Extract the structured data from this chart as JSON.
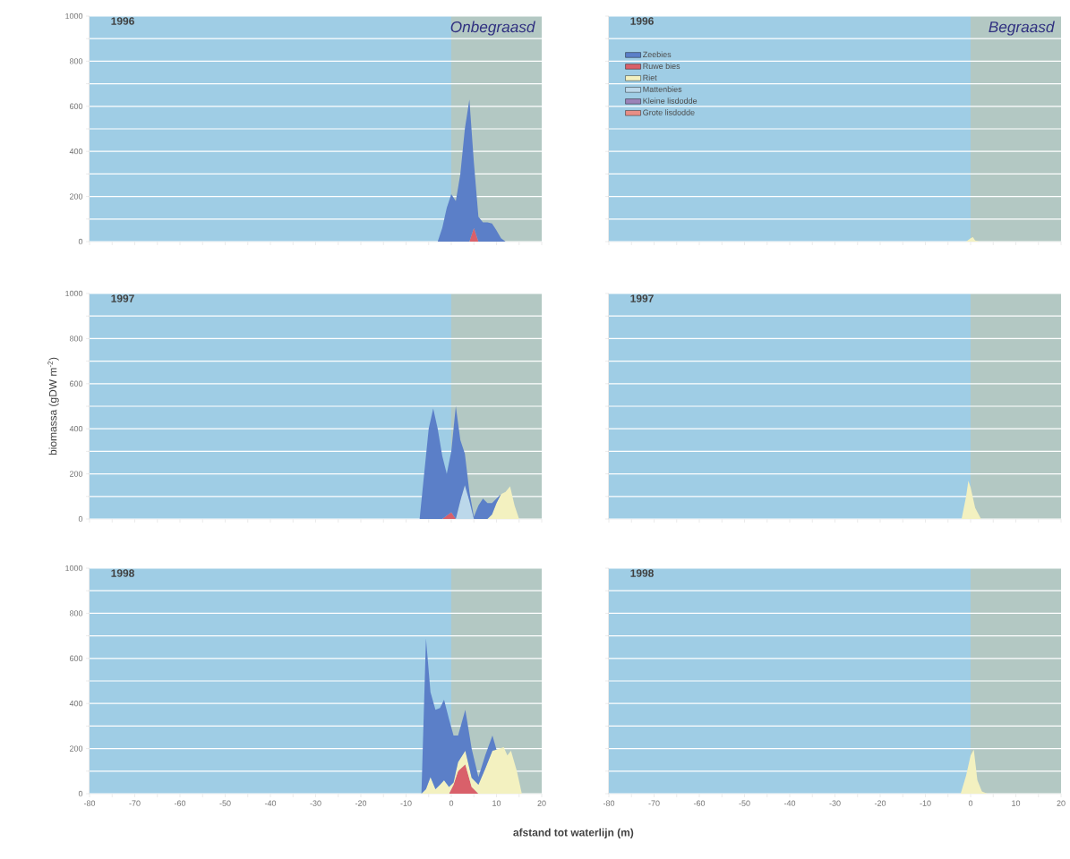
{
  "chart_data": [
    {
      "type": "area",
      "title": "1996",
      "annotations": [
        "Onbegraasd"
      ],
      "stacked": true,
      "grid": "y",
      "tick_labels": "y",
      "xlim": [
        -80,
        20
      ],
      "ylim": [
        0,
        1000
      ],
      "xticks": [
        {
          "value": -80,
          "label": null
        },
        {
          "value": -75,
          "label": null
        },
        {
          "value": -70,
          "label": null
        },
        {
          "value": -65,
          "label": null
        },
        {
          "value": -60,
          "label": null
        },
        {
          "value": -55,
          "label": null
        },
        {
          "value": -50,
          "label": null
        },
        {
          "value": -45,
          "label": null
        },
        {
          "value": -40,
          "label": null
        },
        {
          "value": -35,
          "label": null
        },
        {
          "value": -30,
          "label": null
        },
        {
          "value": -25,
          "label": null
        },
        {
          "value": -20,
          "label": null
        },
        {
          "value": -15,
          "label": null
        },
        {
          "value": -10,
          "label": null
        },
        {
          "value": -5,
          "label": null
        },
        {
          "value": 0,
          "label": null
        },
        {
          "value": 5,
          "label": null
        },
        {
          "value": 10,
          "label": null
        },
        {
          "value": 15,
          "label": null
        },
        {
          "value": 20,
          "label": null
        }
      ],
      "yticks": [
        0,
        {
          "value": 100,
          "label": null
        },
        200,
        {
          "value": 300,
          "label": null
        },
        400,
        {
          "value": 500,
          "label": null
        },
        600,
        {
          "value": 700,
          "label": null
        },
        800,
        {
          "value": 900,
          "label": null
        },
        1000
      ],
      "bands": [
        {
          "axis": "x",
          "from": -80,
          "to": 0,
          "color": "#9fcde5"
        },
        {
          "axis": "x",
          "from": 0,
          "to": 20,
          "color": "#b3c8c3"
        }
      ],
      "x": [
        -3,
        -2,
        -1,
        0,
        1,
        2,
        3,
        4,
        5,
        6,
        7,
        8,
        9,
        10,
        11,
        12
      ],
      "series": [
        {
          "color": "#d9606a",
          "values": [
            0,
            0,
            0,
            0,
            0,
            0,
            0,
            0,
            60,
            0,
            0,
            0,
            0,
            0,
            0,
            0
          ]
        },
        {
          "color": "#5b7fc8",
          "values": [
            0,
            60,
            150,
            210,
            180,
            300,
            500,
            630,
            290,
            110,
            85,
            85,
            80,
            50,
            15,
            0
          ]
        }
      ]
    },
    {
      "type": "area",
      "title": "1996",
      "annotations": [
        "Begraasd"
      ],
      "stacked": true,
      "grid": "y",
      "tick_labels": false,
      "legend": "top left",
      "xlim": [
        -80,
        20
      ],
      "ylim": [
        0,
        1000
      ],
      "xticks": [
        {
          "value": -80,
          "label": null
        },
        {
          "value": -75,
          "label": null
        },
        {
          "value": -70,
          "label": null
        },
        {
          "value": -65,
          "label": null
        },
        {
          "value": -60,
          "label": null
        },
        {
          "value": -55,
          "label": null
        },
        {
          "value": -50,
          "label": null
        },
        {
          "value": -45,
          "label": null
        },
        {
          "value": -40,
          "label": null
        },
        {
          "value": -35,
          "label": null
        },
        {
          "value": -30,
          "label": null
        },
        {
          "value": -25,
          "label": null
        },
        {
          "value": -20,
          "label": null
        },
        {
          "value": -15,
          "label": null
        },
        {
          "value": -10,
          "label": null
        },
        {
          "value": -5,
          "label": null
        },
        {
          "value": 0,
          "label": null
        },
        {
          "value": 5,
          "label": null
        },
        {
          "value": 10,
          "label": null
        },
        {
          "value": 15,
          "label": null
        },
        {
          "value": 20,
          "label": null
        }
      ],
      "yticks": [
        {
          "value": 0,
          "label": null
        },
        {
          "value": 100,
          "label": null
        },
        {
          "value": 200,
          "label": null
        },
        {
          "value": 300,
          "label": null
        },
        {
          "value": 400,
          "label": null
        },
        {
          "value": 500,
          "label": null
        },
        {
          "value": 600,
          "label": null
        },
        {
          "value": 700,
          "label": null
        },
        {
          "value": 800,
          "label": null
        },
        {
          "value": 900,
          "label": null
        },
        {
          "value": 1000,
          "label": null
        }
      ],
      "bands": [
        {
          "axis": "x",
          "from": -80,
          "to": 0,
          "color": "#9fcde5"
        },
        {
          "axis": "x",
          "from": 0,
          "to": 20,
          "color": "#b3c8c3"
        }
      ],
      "x": [
        -1,
        0,
        0.5,
        1,
        2
      ],
      "series": [
        {
          "name": "Zeebies",
          "color": "#5b7fc8",
          "values": [
            null,
            null,
            null,
            null,
            null
          ]
        },
        {
          "name": "Ruwe bies",
          "color": "#d9606a",
          "values": [
            null,
            null,
            null,
            null,
            null
          ]
        },
        {
          "name": "Riet",
          "color": "#f3f1c0",
          "values": [
            0,
            15,
            20,
            5,
            0
          ]
        },
        {
          "name": "Mattenbies",
          "color": "#bcd8ea",
          "values": [
            null,
            null,
            null,
            null,
            null
          ]
        },
        {
          "name": "Kleine lisdodde",
          "color": "#9b83b8",
          "values": [
            null,
            null,
            null,
            null,
            null
          ]
        },
        {
          "name": "Grote lisdodde",
          "color": "#e88e86",
          "values": [
            null,
            null,
            null,
            null,
            null
          ]
        }
      ]
    },
    {
      "type": "area",
      "title": "1997",
      "ylabel": "biomassa (gDW m$^{-2}$)",
      "stacked": true,
      "grid": "y",
      "tick_labels": "y",
      "xlim": [
        -80,
        20
      ],
      "ylim": [
        0,
        1000
      ],
      "xticks": [
        {
          "value": -80,
          "label": null
        },
        {
          "value": -75,
          "label": null
        },
        {
          "value": -70,
          "label": null
        },
        {
          "value": -65,
          "label": null
        },
        {
          "value": -60,
          "label": null
        },
        {
          "value": -55,
          "label": null
        },
        {
          "value": -50,
          "label": null
        },
        {
          "value": -45,
          "label": null
        },
        {
          "value": -40,
          "label": null
        },
        {
          "value": -35,
          "label": null
        },
        {
          "value": -30,
          "label": null
        },
        {
          "value": -25,
          "label": null
        },
        {
          "value": -20,
          "label": null
        },
        {
          "value": -15,
          "label": null
        },
        {
          "value": -10,
          "label": null
        },
        {
          "value": -5,
          "label": null
        },
        {
          "value": 0,
          "label": null
        },
        {
          "value": 5,
          "label": null
        },
        {
          "value": 10,
          "label": null
        },
        {
          "value": 15,
          "label": null
        },
        {
          "value": 20,
          "label": null
        }
      ],
      "yticks": [
        0,
        {
          "value": 100,
          "label": null
        },
        200,
        {
          "value": 300,
          "label": null
        },
        400,
        {
          "value": 500,
          "label": null
        },
        600,
        {
          "value": 700,
          "label": null
        },
        800,
        {
          "value": 900,
          "label": null
        },
        1000
      ],
      "bands": [
        {
          "axis": "x",
          "from": -80,
          "to": 0,
          "color": "#9fcde5"
        },
        {
          "axis": "x",
          "from": 0,
          "to": 20,
          "color": "#b3c8c3"
        }
      ],
      "x": [
        -7,
        -6,
        -5,
        -4,
        -3,
        -2,
        -1,
        0,
        1,
        2,
        3,
        4,
        5,
        6,
        7,
        8,
        9,
        10,
        11,
        12,
        13,
        14,
        15
      ],
      "series": [
        {
          "color": "#d9606a",
          "values": [
            0,
            0,
            0,
            0,
            0,
            0,
            15,
            30,
            0,
            0,
            0,
            0,
            0,
            0,
            0,
            0,
            0,
            0,
            0,
            0,
            0,
            0,
            0
          ]
        },
        {
          "color": "#f3f1c0",
          "values": [
            0,
            0,
            0,
            0,
            0,
            0,
            0,
            0,
            0,
            0,
            0,
            0,
            0,
            0,
            0,
            0,
            20,
            70,
            110,
            120,
            145,
            60,
            0
          ]
        },
        {
          "color": "#bcd8ea",
          "values": [
            0,
            0,
            0,
            0,
            0,
            0,
            0,
            0,
            0,
            80,
            150,
            80,
            0,
            0,
            0,
            0,
            0,
            0,
            0,
            0,
            0,
            0,
            0
          ]
        },
        {
          "color": "#5b7fc8",
          "values": [
            0,
            200,
            400,
            490,
            400,
            280,
            185,
            270,
            500,
            270,
            140,
            40,
            10,
            60,
            90,
            70,
            50,
            20,
            0,
            0,
            0,
            0,
            0
          ]
        }
      ]
    },
    {
      "type": "area",
      "title": "1997",
      "stacked": true,
      "grid": "y",
      "tick_labels": false,
      "xlim": [
        -80,
        20
      ],
      "ylim": [
        0,
        1000
      ],
      "xticks": [
        {
          "value": -80,
          "label": null
        },
        {
          "value": -75,
          "label": null
        },
        {
          "value": -70,
          "label": null
        },
        {
          "value": -65,
          "label": null
        },
        {
          "value": -60,
          "label": null
        },
        {
          "value": -55,
          "label": null
        },
        {
          "value": -50,
          "label": null
        },
        {
          "value": -45,
          "label": null
        },
        {
          "value": -40,
          "label": null
        },
        {
          "value": -35,
          "label": null
        },
        {
          "value": -30,
          "label": null
        },
        {
          "value": -25,
          "label": null
        },
        {
          "value": -20,
          "label": null
        },
        {
          "value": -15,
          "label": null
        },
        {
          "value": -10,
          "label": null
        },
        {
          "value": -5,
          "label": null
        },
        {
          "value": 0,
          "label": null
        },
        {
          "value": 5,
          "label": null
        },
        {
          "value": 10,
          "label": null
        },
        {
          "value": 15,
          "label": null
        },
        {
          "value": 20,
          "label": null
        }
      ],
      "yticks": [
        {
          "value": 0,
          "label": null
        },
        {
          "value": 100,
          "label": null
        },
        {
          "value": 200,
          "label": null
        },
        {
          "value": 300,
          "label": null
        },
        {
          "value": 400,
          "label": null
        },
        {
          "value": 500,
          "label": null
        },
        {
          "value": 600,
          "label": null
        },
        {
          "value": 700,
          "label": null
        },
        {
          "value": 800,
          "label": null
        },
        {
          "value": 900,
          "label": null
        },
        {
          "value": 1000,
          "label": null
        }
      ],
      "bands": [
        {
          "axis": "x",
          "from": -80,
          "to": 0,
          "color": "#9fcde5"
        },
        {
          "axis": "x",
          "from": 0,
          "to": 20,
          "color": "#b3c8c3"
        }
      ],
      "x": [
        -2,
        -1,
        -0.5,
        0,
        1,
        2.3
      ],
      "series": [
        {
          "color": "#f3f1c0",
          "values": [
            0,
            100,
            170,
            140,
            50,
            0
          ]
        }
      ]
    },
    {
      "type": "area",
      "title": "1998",
      "xlabel": "afstand tot waterlijn (m)",
      "stacked": true,
      "grid": "y",
      "xlim": [
        -80,
        20
      ],
      "ylim": [
        0,
        1000
      ],
      "xticks": [
        -80,
        {
          "value": -75,
          "label": null
        },
        -70,
        {
          "value": -65,
          "label": null
        },
        -60,
        {
          "value": -55,
          "label": null
        },
        -50,
        {
          "value": -45,
          "label": null
        },
        -40,
        {
          "value": -35,
          "label": null
        },
        -30,
        {
          "value": -25,
          "label": null
        },
        -20,
        {
          "value": -15,
          "label": null
        },
        -10,
        {
          "value": -5,
          "label": null
        },
        0,
        {
          "value": 5,
          "label": null
        },
        10,
        {
          "value": 15,
          "label": null
        },
        20
      ],
      "yticks": [
        0,
        {
          "value": 100,
          "label": null
        },
        200,
        {
          "value": 300,
          "label": null
        },
        400,
        {
          "value": 500,
          "label": null
        },
        600,
        {
          "value": 700,
          "label": null
        },
        800,
        {
          "value": 900,
          "label": null
        },
        1000
      ],
      "bands": [
        {
          "axis": "x",
          "from": -80,
          "to": 0,
          "color": "#9fcde5"
        },
        {
          "axis": "x",
          "from": 0,
          "to": 20,
          "color": "#b3c8c3"
        }
      ],
      "x": [
        -6.6,
        -5.6,
        -4.6,
        -3.5,
        -2.5,
        -1.6,
        -0.5,
        0.5,
        1.5,
        3.1,
        4.5,
        6.0,
        7.5,
        9.1,
        10,
        11.6,
        12.4,
        13.2,
        14.5,
        15.6
      ],
      "series": [
        {
          "color": "#d9606a",
          "values": [
            0,
            0,
            0,
            0,
            0,
            0,
            0,
            40,
            100,
            130,
            30,
            0,
            0,
            0,
            0,
            0,
            0,
            0,
            0,
            0
          ]
        },
        {
          "color": "#f3f1c0",
          "values": [
            0,
            20,
            73,
            20,
            40,
            60,
            30,
            10,
            40,
            60,
            40,
            40,
            110,
            190,
            195,
            206,
            170,
            190,
            100,
            0
          ]
        },
        {
          "color": "#5b7fc8",
          "values": [
            0,
            668,
            377,
            352,
            340,
            357,
            300,
            208,
            118,
            182,
            130,
            33,
            60,
            68,
            0,
            0,
            0,
            0,
            0,
            0
          ]
        }
      ]
    },
    {
      "type": "area",
      "title": "1998",
      "stacked": true,
      "grid": "y",
      "tick_labels": "x",
      "xlim": [
        -80,
        20
      ],
      "ylim": [
        0,
        1000
      ],
      "xticks": [
        -80,
        {
          "value": -75,
          "label": null
        },
        -70,
        {
          "value": -65,
          "label": null
        },
        -60,
        {
          "value": -55,
          "label": null
        },
        -50,
        {
          "value": -45,
          "label": null
        },
        -40,
        {
          "value": -35,
          "label": null
        },
        -30,
        {
          "value": -25,
          "label": null
        },
        -20,
        {
          "value": -15,
          "label": null
        },
        -10,
        {
          "value": -5,
          "label": null
        },
        0,
        {
          "value": 5,
          "label": null
        },
        10,
        {
          "value": 15,
          "label": null
        },
        20
      ],
      "yticks": [
        {
          "value": 0,
          "label": null
        },
        {
          "value": 100,
          "label": null
        },
        {
          "value": 200,
          "label": null
        },
        {
          "value": 300,
          "label": null
        },
        {
          "value": 400,
          "label": null
        },
        {
          "value": 500,
          "label": null
        },
        {
          "value": 600,
          "label": null
        },
        {
          "value": 700,
          "label": null
        },
        {
          "value": 800,
          "label": null
        },
        {
          "value": 900,
          "label": null
        },
        {
          "value": 1000,
          "label": null
        }
      ],
      "bands": [
        {
          "axis": "x",
          "from": -80,
          "to": 0,
          "color": "#9fcde5"
        },
        {
          "axis": "x",
          "from": 0,
          "to": 20,
          "color": "#b3c8c3"
        }
      ],
      "x": [
        -2.2,
        -1,
        0,
        0.7,
        1.5,
        2.5,
        3.7
      ],
      "series": [
        {
          "color": "#f3f1c0",
          "values": [
            0,
            80,
            170,
            195,
            60,
            10,
            0
          ]
        }
      ]
    }
  ]
}
